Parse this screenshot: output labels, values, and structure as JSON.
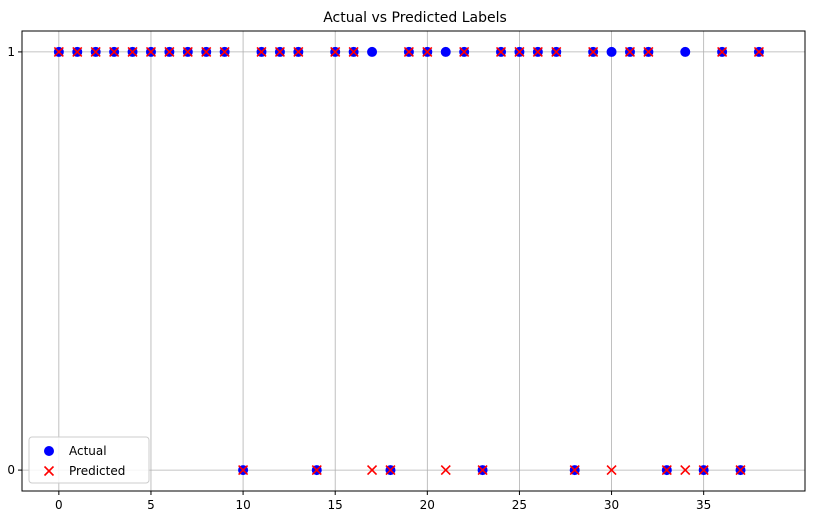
{
  "chart_data": {
    "type": "scatter",
    "title": "Actual vs Predicted Labels",
    "xlabel": "",
    "ylabel": "",
    "xlim": [
      -2,
      40.5
    ],
    "ylim": [
      -0.05,
      1.05
    ],
    "x_ticks": [
      0,
      5,
      10,
      15,
      20,
      25,
      30,
      35
    ],
    "y_ticks": [
      0,
      1
    ],
    "grid": true,
    "legend_position": "lower-left",
    "series": [
      {
        "name": "Actual",
        "marker": "circle",
        "color": "#0000ff",
        "x": [
          0,
          1,
          2,
          3,
          4,
          5,
          6,
          7,
          8,
          9,
          10,
          11,
          12,
          13,
          14,
          15,
          16,
          17,
          18,
          19,
          20,
          21,
          22,
          23,
          24,
          25,
          26,
          27,
          28,
          29,
          30,
          31,
          32,
          33,
          34,
          35,
          36,
          37,
          38
        ],
        "y": [
          1,
          1,
          1,
          1,
          1,
          1,
          1,
          1,
          1,
          1,
          0,
          1,
          1,
          1,
          0,
          1,
          1,
          1,
          0,
          1,
          1,
          1,
          1,
          0,
          1,
          1,
          1,
          1,
          0,
          1,
          1,
          1,
          1,
          0,
          1,
          0,
          1,
          0,
          1
        ]
      },
      {
        "name": "Predicted",
        "marker": "x",
        "color": "#ff0000",
        "x": [
          0,
          1,
          2,
          3,
          4,
          5,
          6,
          7,
          8,
          9,
          10,
          11,
          12,
          13,
          14,
          15,
          16,
          17,
          18,
          19,
          20,
          21,
          22,
          23,
          24,
          25,
          26,
          27,
          28,
          29,
          30,
          31,
          32,
          33,
          34,
          35,
          36,
          37,
          38
        ],
        "y": [
          1,
          1,
          1,
          1,
          1,
          1,
          1,
          1,
          1,
          1,
          0,
          1,
          1,
          1,
          0,
          1,
          1,
          0,
          0,
          1,
          1,
          0,
          1,
          0,
          1,
          1,
          1,
          1,
          0,
          1,
          0,
          1,
          1,
          0,
          0,
          0,
          1,
          0,
          1
        ]
      }
    ]
  }
}
